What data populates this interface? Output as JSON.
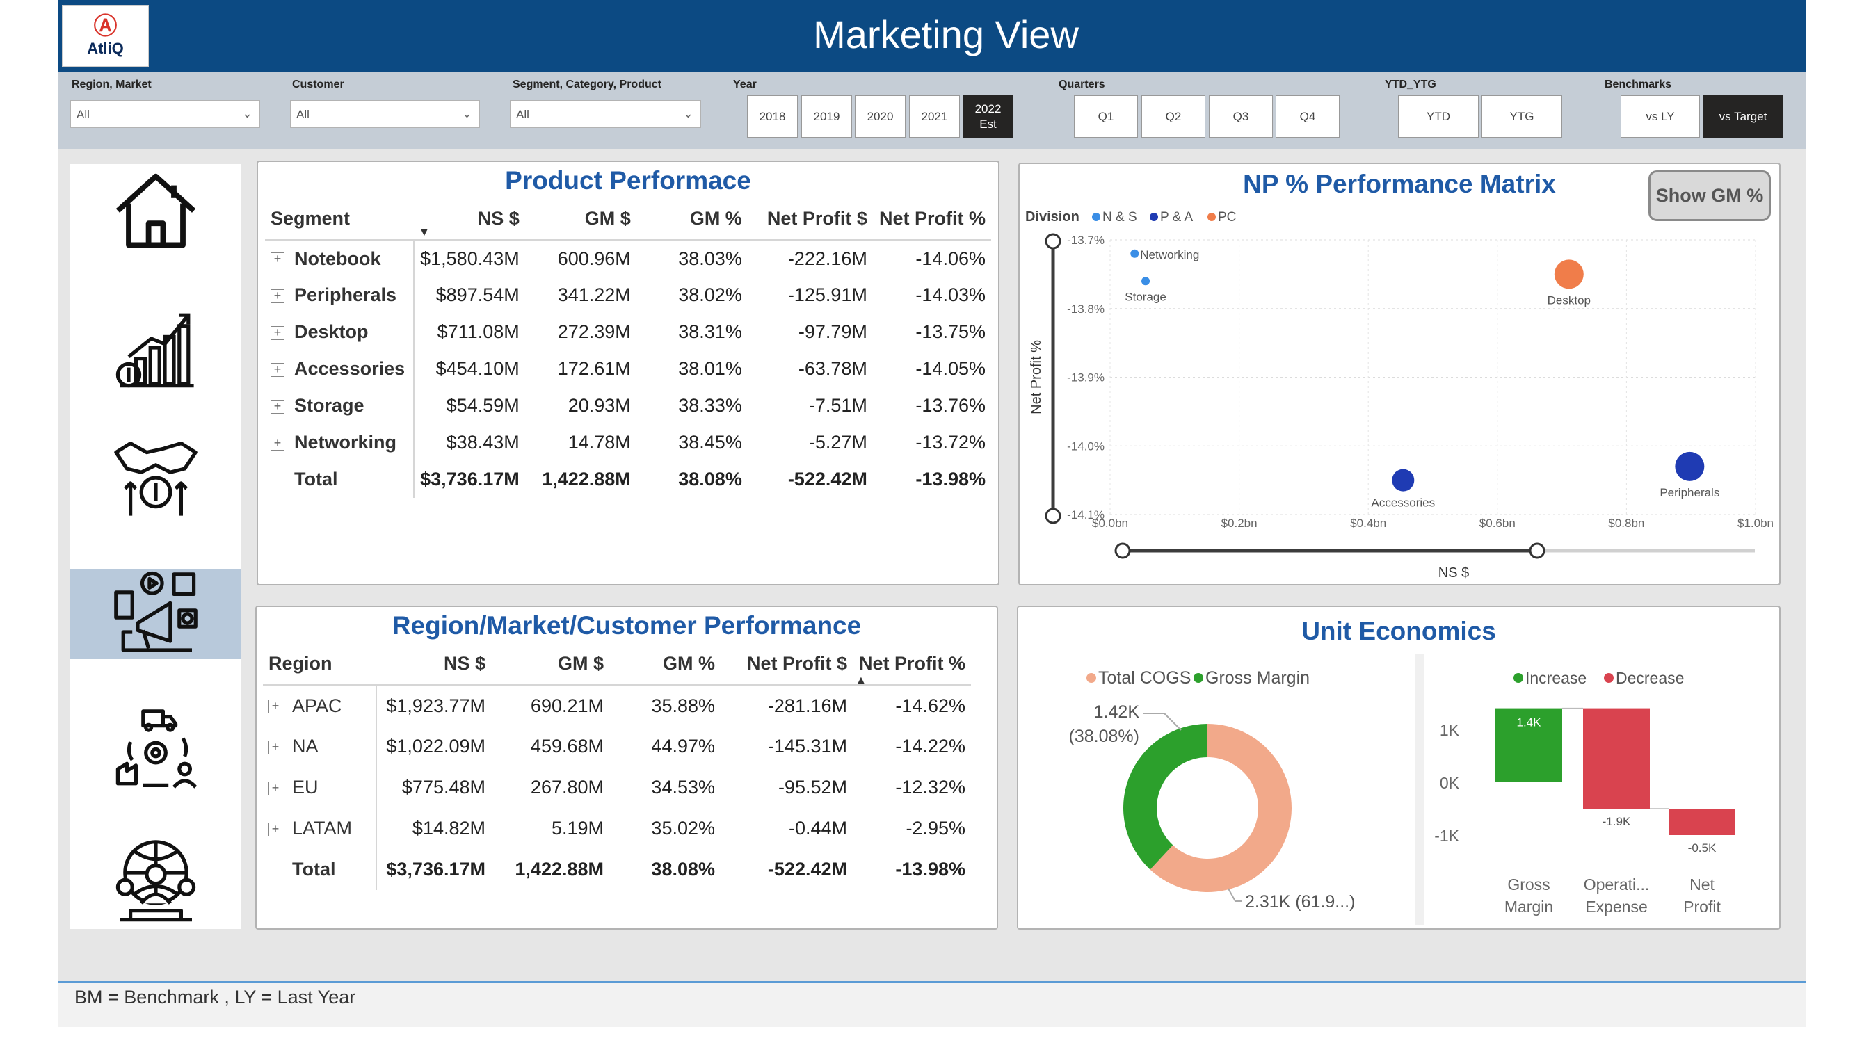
{
  "header": {
    "title": "Marketing View",
    "logo_text": "AtliQ"
  },
  "filters": {
    "region_market": {
      "label": "Region, Market",
      "value": "All"
    },
    "customer": {
      "label": "Customer",
      "value": "All"
    },
    "segment_category_product": {
      "label": "Segment, Category, Product",
      "value": "All"
    },
    "year": {
      "label": "Year",
      "options": [
        "2018",
        "2019",
        "2020",
        "2021",
        "2022 Est"
      ],
      "selected": "2022 Est"
    },
    "quarters": {
      "label": "Quarters",
      "options": [
        "Q1",
        "Q2",
        "Q3",
        "Q4"
      ]
    },
    "ytd_ytg": {
      "label": "YTD_YTG",
      "options": [
        "YTD",
        "YTG"
      ]
    },
    "benchmarks": {
      "label": "Benchmarks",
      "options": [
        "vs LY",
        "vs Target"
      ],
      "selected": "vs Target"
    }
  },
  "sidebar": {
    "items": [
      {
        "icon": "home-icon"
      },
      {
        "icon": "finance-chart-icon"
      },
      {
        "icon": "sales-handshake-icon"
      },
      {
        "icon": "marketing-megaphone-icon",
        "active": true
      },
      {
        "icon": "supply-chain-icon"
      },
      {
        "icon": "executive-globe-icon"
      }
    ]
  },
  "product_performance": {
    "title": "Product Performace",
    "columns": [
      "Segment",
      "NS $",
      "GM $",
      "GM %",
      "Net Profit $",
      "Net Profit %"
    ],
    "rows": [
      [
        "Notebook",
        "$1,580.43M",
        "600.96M",
        "38.03%",
        "-222.16M",
        "-14.06%"
      ],
      [
        "Peripherals",
        "$897.54M",
        "341.22M",
        "38.02%",
        "-125.91M",
        "-14.03%"
      ],
      [
        "Desktop",
        "$711.08M",
        "272.39M",
        "38.31%",
        "-97.79M",
        "-13.75%"
      ],
      [
        "Accessories",
        "$454.10M",
        "172.61M",
        "38.01%",
        "-63.78M",
        "-14.05%"
      ],
      [
        "Storage",
        "$54.59M",
        "20.93M",
        "38.33%",
        "-7.51M",
        "-13.76%"
      ],
      [
        "Networking",
        "$38.43M",
        "14.78M",
        "38.45%",
        "-5.27M",
        "-13.72%"
      ]
    ],
    "total": [
      "Total",
      "$3,736.17M",
      "1,422.88M",
      "38.08%",
      "-522.42M",
      "-13.98%"
    ]
  },
  "region_performance": {
    "title": "Region/Market/Customer Performance",
    "columns": [
      "Region",
      "NS $",
      "GM $",
      "GM %",
      "Net Profit $",
      "Net Profit %"
    ],
    "rows": [
      [
        "APAC",
        "$1,923.77M",
        "690.21M",
        "35.88%",
        "-281.16M",
        "-14.62%"
      ],
      [
        "NA",
        "$1,022.09M",
        "459.68M",
        "44.97%",
        "-145.31M",
        "-14.22%"
      ],
      [
        "EU",
        "$775.48M",
        "267.80M",
        "34.53%",
        "-95.52M",
        "-12.32%"
      ],
      [
        "LATAM",
        "$14.82M",
        "5.19M",
        "35.02%",
        "-0.44M",
        "-2.95%"
      ]
    ],
    "total": [
      "Total",
      "$3,736.17M",
      "1,422.88M",
      "38.08%",
      "-522.42M",
      "-13.98%"
    ]
  },
  "np_matrix": {
    "title": "NP % Performance Matrix",
    "show_gm_label": "Show GM %",
    "legend_title": "Division",
    "xlabel": "NS $",
    "ylabel": "Net Profit %"
  },
  "unit_economics": {
    "title": "Unit Economics"
  },
  "chart_data": [
    {
      "type": "scatter",
      "title": "NP % Performance Matrix",
      "xlabel": "NS $",
      "ylabel": "Net Profit %",
      "xlim": [
        0,
        1.0
      ],
      "ylim": [
        -14.1,
        -13.7
      ],
      "x_ticks": [
        "$0.0bn",
        "$0.2bn",
        "$0.4bn",
        "$0.6bn",
        "$0.8bn",
        "$1.0bn"
      ],
      "y_ticks": [
        "-13.7%",
        "-13.8%",
        "-13.9%",
        "-14.0%",
        "-14.1%"
      ],
      "legend_title": "Division",
      "series": [
        {
          "name": "N & S",
          "color": "#3a8ee6"
        },
        {
          "name": "P & A",
          "color": "#1f3bb3"
        },
        {
          "name": "PC",
          "color": "#f07d4a"
        }
      ],
      "points": [
        {
          "label": "Networking",
          "x": 0.038,
          "y": -13.72,
          "series": "N & S",
          "size": "small"
        },
        {
          "label": "Storage",
          "x": 0.055,
          "y": -13.76,
          "series": "N & S",
          "size": "small"
        },
        {
          "label": "Desktop",
          "x": 0.711,
          "y": -13.75,
          "series": "PC",
          "size": "large"
        },
        {
          "label": "Accessories",
          "x": 0.454,
          "y": -14.05,
          "series": "P & A",
          "size": "medium"
        },
        {
          "label": "Peripherals",
          "x": 0.898,
          "y": -14.03,
          "series": "P & A",
          "size": "large"
        }
      ]
    },
    {
      "type": "pie",
      "donut": true,
      "series": [
        {
          "name": "Total COGS",
          "color": "#f2a98a"
        },
        {
          "name": "Gross Margin",
          "color": "#2ca02c"
        }
      ],
      "values": [
        2.31,
        1.42
      ],
      "labels": [
        "2.31K (61.9...)",
        "1.42K\n(38.08%)"
      ]
    },
    {
      "type": "bar",
      "subtype": "waterfall",
      "legend": [
        {
          "name": "Increase",
          "color": "#2ca02c"
        },
        {
          "name": "Decrease",
          "color": "#d9434f"
        }
      ],
      "categories": [
        "Gross Margin",
        "Operati... Expense",
        "Net Profit"
      ],
      "values": [
        1.4,
        -1.9,
        -0.5
      ],
      "data_labels": [
        "1.4K",
        "-1.9K",
        "-0.5K"
      ],
      "y_ticks": [
        "1K",
        "0K",
        "-1K"
      ],
      "ylim": [
        -1.5,
        1.5
      ]
    }
  ],
  "footer": {
    "note": "BM = Benchmark , LY = Last Year"
  }
}
